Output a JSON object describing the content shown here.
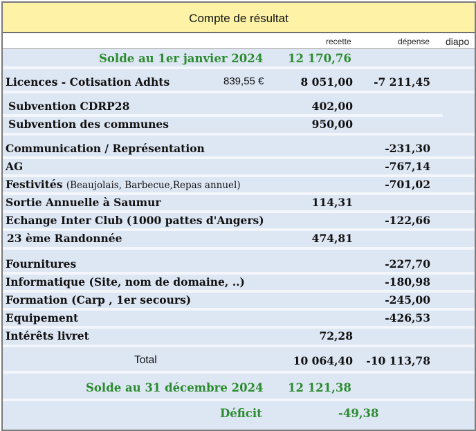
{
  "title": "Compte de résultat",
  "headers": {
    "recette": "recette",
    "depense": "dépense",
    "diapo": "diapo"
  },
  "opening": {
    "label": "Solde au 1er janvier 2024",
    "value": "12 170,76"
  },
  "licences": {
    "label": "Licences  - Cotisation Adhts",
    "amount": "839,55 €",
    "recette": "8 051,00",
    "depense": "-7 211,45"
  },
  "subventions": [
    {
      "label": "Subvention  CDRP28",
      "recette": "402,00"
    },
    {
      "label": "Subvention des communes",
      "recette": "950,00"
    }
  ],
  "activities": [
    {
      "label": "Communication / Représentation",
      "depense": "-231,30"
    },
    {
      "label": "AG",
      "depense": "-767,14"
    },
    {
      "label": "Festivités",
      "note": "(Beaujolais, Barbecue,Repas annuel)",
      "depense": "-701,02"
    },
    {
      "label": "Sortie Annuelle à Saumur",
      "recette": "114,31"
    },
    {
      "label": "Echange Inter Club (1000 pattes d'Angers)",
      "depense": "-122,66"
    },
    {
      "label": " 23 ème Randonnée",
      "recette": "474,81"
    }
  ],
  "expenses": [
    {
      "label": "Fournitures",
      "depense": "-227,70"
    },
    {
      "label": "Informatique (Site, nom de domaine, ..)",
      "depense": "-180,98"
    },
    {
      "label": "Formation (Carp , 1er secours)",
      "depense": "-245,00"
    },
    {
      "label": "Equipement",
      "depense": "-426,53"
    },
    {
      "label": "Intérêts livret",
      "recette": "72,28"
    }
  ],
  "total": {
    "label": "Total",
    "recette": "10 064,40",
    "depense": "-10 113,78"
  },
  "closing": {
    "label": "Solde au 31 décembre 2024",
    "value": "12 121,38"
  },
  "deficit": {
    "label": "Déficit",
    "value": "-49,38"
  }
}
